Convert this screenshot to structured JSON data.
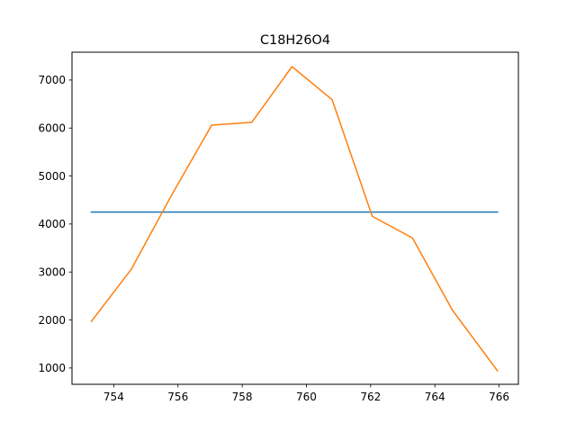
{
  "chart_data": {
    "type": "line",
    "title": "C18H26O4",
    "xlabel": "",
    "ylabel": "",
    "xlim": [
      752.7,
      766.6
    ],
    "ylim": [
      660,
      7580
    ],
    "grid": false,
    "x_ticks": [
      754,
      756,
      758,
      760,
      762,
      764,
      766
    ],
    "y_ticks": [
      1000,
      2000,
      3000,
      4000,
      5000,
      6000,
      7000
    ],
    "series": [
      {
        "color": "#1f77b4",
        "x": [
          753.3,
          765.95
        ],
        "y": [
          4250,
          4250
        ]
      },
      {
        "color": "#ff7f0e",
        "x": [
          753.3,
          754.55,
          755.8,
          757.05,
          758.3,
          759.55,
          760.8,
          762.05,
          763.3,
          764.55,
          765.95
        ],
        "y": [
          1970,
          3060,
          4600,
          6060,
          6120,
          7280,
          6590,
          4160,
          3710,
          2200,
          940
        ]
      }
    ]
  }
}
